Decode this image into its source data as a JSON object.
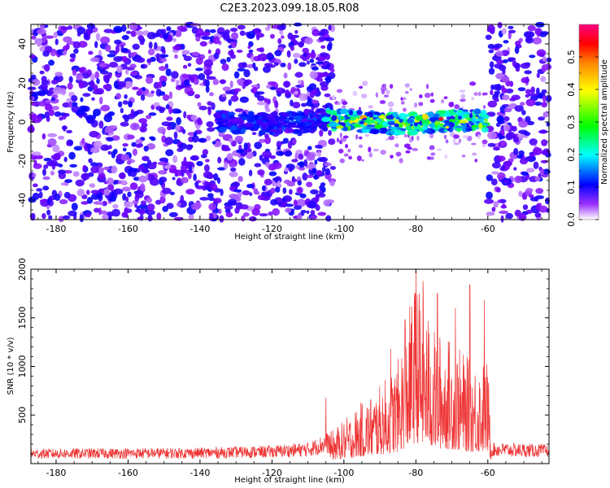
{
  "title": "C2E3.2023.099.18.05.R08",
  "chart_data": [
    {
      "type": "heatmap",
      "xlabel": "Height of straight line (km)",
      "ylabel": "Frequency (Hz)",
      "xlim": [
        -187,
        -43
      ],
      "ylim": [
        -50,
        50
      ],
      "xticks": [
        -180,
        -160,
        -140,
        -120,
        -100,
        -80,
        -60
      ],
      "yticks": [
        -40,
        -20,
        0,
        20,
        40
      ],
      "colorbar": {
        "label": "Normalized spectral amplitude",
        "range": [
          0,
          0.6
        ],
        "ticks": [
          0.0,
          0.1,
          0.2,
          0.3,
          0.4,
          0.5
        ],
        "colormap": [
          "#ffffff",
          "#7b00ff",
          "#0000ff",
          "#00ffff",
          "#00ff00",
          "#ffff00",
          "#ff8800",
          "#ff0000",
          "#ff0080"
        ]
      },
      "features": {
        "noise_regions_km": [
          [
            -187,
            -103
          ],
          [
            -60,
            -43
          ]
        ],
        "signal_band_km": [
          -135,
          -60
        ],
        "signal_center_hz": 0,
        "signal_halfwidth_hz": 5,
        "peak_amplitude": 0.55,
        "peak_km": -73
      }
    },
    {
      "type": "line",
      "xlabel": "Height of straight line (km)",
      "ylabel": "SNR (10 * v/v)",
      "xlim": [
        -187,
        -43
      ],
      "ylim": [
        0,
        2000
      ],
      "xticks": [
        -180,
        -160,
        -140,
        -120,
        -100,
        -80,
        -60
      ],
      "yticks": [
        500,
        1000,
        1500,
        2000
      ],
      "color": "#ee3333",
      "envelope": {
        "x": [
          -187,
          -140,
          -120,
          -110,
          -104,
          -100,
          -95,
          -90,
          -85,
          -80,
          -75,
          -70,
          -65,
          -60,
          -59,
          -43
        ],
        "y": [
          140,
          150,
          170,
          200,
          300,
          420,
          600,
          750,
          1000,
          1800,
          1300,
          1200,
          1000,
          1000,
          200,
          180
        ]
      },
      "peaks": [
        {
          "x": -87,
          "y": 1180
        },
        {
          "x": -83,
          "y": 1480
        },
        {
          "x": -80,
          "y": 2000
        },
        {
          "x": -78,
          "y": 1880
        },
        {
          "x": -74,
          "y": 1750
        },
        {
          "x": -69,
          "y": 1600
        },
        {
          "x": -65,
          "y": 1840
        },
        {
          "x": -61,
          "y": 1680
        },
        {
          "x": -105,
          "y": 680
        }
      ]
    }
  ]
}
